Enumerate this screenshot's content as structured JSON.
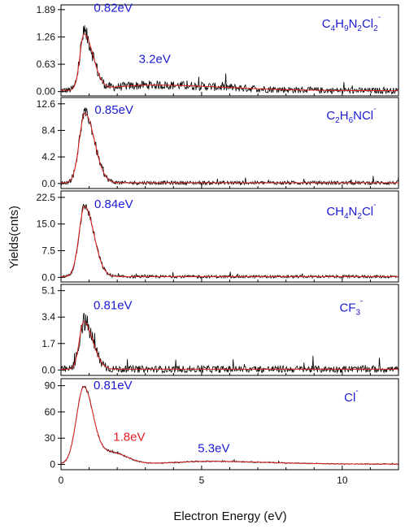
{
  "chart_data": {
    "type": "line",
    "xlabel": "Electron Energy (eV)",
    "ylabel": "Yields(cnts)",
    "xlim": [
      0,
      12
    ],
    "x_ticks": [
      0,
      5,
      10
    ],
    "x_tick_labels": [
      "0",
      "5",
      "10"
    ],
    "series_colors": {
      "measured": "#000000",
      "fit": "#e02020"
    },
    "label_colors": {
      "blue": "#1a1ad4",
      "red": "#e02020"
    },
    "grid": false,
    "panels": [
      {
        "species": {
          "parts": [
            [
              "C",
              ""
            ],
            [
              "4",
              "sub"
            ],
            [
              "H",
              ""
            ],
            [
              "9",
              "sub"
            ],
            [
              "N",
              ""
            ],
            [
              "2",
              "sub"
            ],
            [
              "Cl",
              ""
            ],
            [
              "2",
              "sub"
            ],
            [
              "-",
              "sup"
            ]
          ]
        },
        "ylim": [
          -0.1,
          2.0
        ],
        "y_ticks": [
          0.0,
          0.63,
          1.26,
          1.89
        ],
        "y_tick_labels": [
          "0.00",
          "0.63",
          "1.26",
          "1.89"
        ],
        "peak_labels": [
          {
            "text": "0.82eV",
            "x": 0.82,
            "y": 1.84,
            "color": "blue"
          },
          {
            "text": "3.2eV",
            "x": 3.2,
            "y": 0.66,
            "color": "blue"
          }
        ],
        "components": [
          {
            "center": 0.82,
            "amp": 1.28,
            "wl": 0.15,
            "wr": 0.32
          },
          {
            "center": 3.2,
            "amp": 0.13,
            "wl": 1.3,
            "wr": 2.6
          }
        ],
        "noise": 0.1,
        "baseline": 0.02
      },
      {
        "species": {
          "parts": [
            [
              "C",
              ""
            ],
            [
              "2",
              "sub"
            ],
            [
              "H",
              ""
            ],
            [
              "6",
              "sub"
            ],
            [
              "NCl",
              ""
            ],
            [
              "-",
              "sup"
            ]
          ]
        },
        "ylim": [
          -0.8,
          13.6
        ],
        "y_ticks": [
          0.0,
          4.2,
          8.4,
          12.6
        ],
        "y_tick_labels": [
          "0.0",
          "4.2",
          "8.4",
          "12.6"
        ],
        "peak_labels": [
          {
            "text": "0.85eV",
            "x": 0.85,
            "y": 11.0,
            "color": "blue"
          }
        ],
        "components": [
          {
            "center": 0.85,
            "amp": 11.0,
            "wl": 0.2,
            "wr": 0.34
          }
        ],
        "noise": 0.45,
        "baseline": 0.1
      },
      {
        "species": {
          "parts": [
            [
              "CH",
              ""
            ],
            [
              "4",
              "sub"
            ],
            [
              "N",
              ""
            ],
            [
              "2",
              "sub"
            ],
            [
              "Cl",
              ""
            ],
            [
              "-",
              "sup"
            ]
          ]
        },
        "ylim": [
          -1.3,
          24.3
        ],
        "y_ticks": [
          0.0,
          7.5,
          15.0,
          22.5
        ],
        "y_tick_labels": [
          "0.0",
          "7.5",
          "15.0",
          "22.5"
        ],
        "peak_labels": [
          {
            "text": "0.84eV",
            "x": 0.84,
            "y": 19.5,
            "color": "blue"
          }
        ],
        "components": [
          {
            "center": 0.84,
            "amp": 19.8,
            "wl": 0.2,
            "wr": 0.33
          }
        ],
        "noise": 0.6,
        "baseline": 0.2
      },
      {
        "species": {
          "parts": [
            [
              "CF",
              ""
            ],
            [
              "3",
              "sub"
            ],
            [
              "-",
              "sup"
            ]
          ]
        },
        "ylim": [
          -0.35,
          5.5
        ],
        "y_ticks": [
          0.0,
          1.7,
          3.4,
          5.1
        ],
        "y_tick_labels": [
          "0.0",
          "1.7",
          "3.4",
          "5.1"
        ],
        "peak_labels": [
          {
            "text": "0.81eV",
            "x": 0.81,
            "y": 3.9,
            "color": "blue"
          }
        ],
        "components": [
          {
            "center": 0.81,
            "amp": 3.05,
            "wl": 0.16,
            "wr": 0.32
          }
        ],
        "noise": 0.32,
        "baseline": 0.05
      },
      {
        "species": {
          "parts": [
            [
              "Cl",
              ""
            ],
            [
              "-",
              "sup"
            ]
          ]
        },
        "ylim": [
          -6,
          98
        ],
        "y_ticks": [
          0,
          30,
          60,
          90
        ],
        "y_tick_labels": [
          "0",
          "30",
          "60",
          "90"
        ],
        "peak_labels": [
          {
            "text": "0.81eV",
            "x": 0.81,
            "y": 86,
            "color": "blue"
          },
          {
            "text": "1.8eV",
            "x": 1.8,
            "y": 27,
            "color": "red"
          },
          {
            "text": "5.3eV",
            "x": 5.3,
            "y": 14,
            "color": "blue"
          }
        ],
        "components": [
          {
            "center": 0.81,
            "amp": 88,
            "wl": 0.26,
            "wr": 0.34
          },
          {
            "center": 1.8,
            "amp": 13,
            "wl": 0.35,
            "wr": 0.55
          },
          {
            "center": 5.3,
            "amp": 3.2,
            "wl": 1.2,
            "wr": 2.0
          }
        ],
        "noise": 0.9,
        "baseline": 0.4
      }
    ]
  }
}
